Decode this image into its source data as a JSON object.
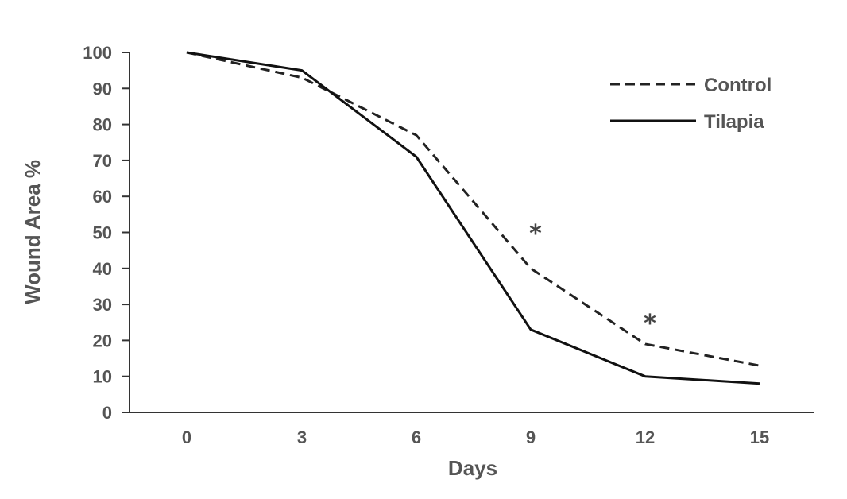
{
  "chart_data": {
    "type": "line",
    "title": "",
    "xlabel": "Days",
    "ylabel": "Wound Area %",
    "x": [
      0,
      3,
      6,
      9,
      12,
      15
    ],
    "x_tick_labels": [
      "0",
      "3",
      "6",
      "9",
      "12",
      "15"
    ],
    "y_tick_labels": [
      "0",
      "10",
      "20",
      "30",
      "40",
      "50",
      "60",
      "70",
      "80",
      "90",
      "100"
    ],
    "ylim": [
      0,
      100
    ],
    "grid": false,
    "legend_position": "top-right",
    "series": [
      {
        "name": "Control",
        "style": "dashed",
        "color": "#222222",
        "values": [
          100,
          93,
          77,
          40,
          19,
          13
        ]
      },
      {
        "name": "Tilapia",
        "style": "solid",
        "color": "#111111",
        "values": [
          100,
          95,
          71,
          23,
          10,
          8
        ]
      }
    ],
    "annotations": [
      {
        "text": "*",
        "x": 9,
        "y": 51
      },
      {
        "text": "*",
        "x": 12,
        "y": 26
      }
    ]
  }
}
